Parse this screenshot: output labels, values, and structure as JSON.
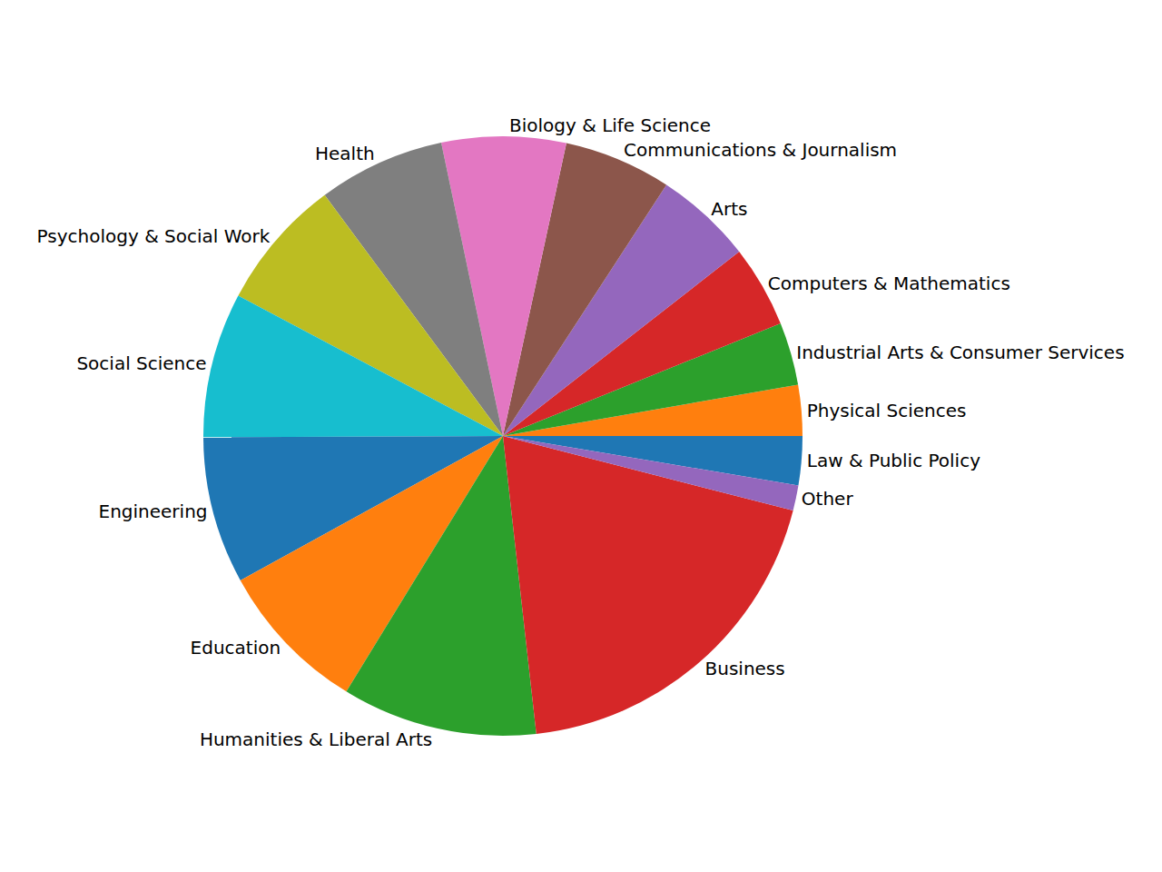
{
  "chart_data": {
    "type": "pie",
    "categories": [
      "Law & Public Policy",
      "Physical Sciences",
      "Industrial Arts & Consumer Services",
      "Computers & Mathematics",
      "Arts",
      "Communications & Journalism",
      "Biology & Life Science",
      "Health",
      "Psychology & Social Work",
      "Social Science",
      "Engineering",
      "Education",
      "Humanities & Liberal Arts",
      "Business",
      "Other"
    ],
    "values": [
      2.64,
      2.74,
      3.39,
      4.41,
      5.27,
      5.79,
      6.7,
      6.84,
      7.1,
      7.82,
      7.93,
      8.25,
      10.53,
      19.22,
      1.36
    ],
    "colors": [
      "#1f77b4",
      "#ff7f0e",
      "#2ca02c",
      "#d62728",
      "#9467bd",
      "#8c564b",
      "#e377c2",
      "#7f7f7f",
      "#bcbd22",
      "#17becf",
      "#1f77b4",
      "#ff7f0e",
      "#2ca02c",
      "#d62728",
      "#9467bd"
    ]
  }
}
